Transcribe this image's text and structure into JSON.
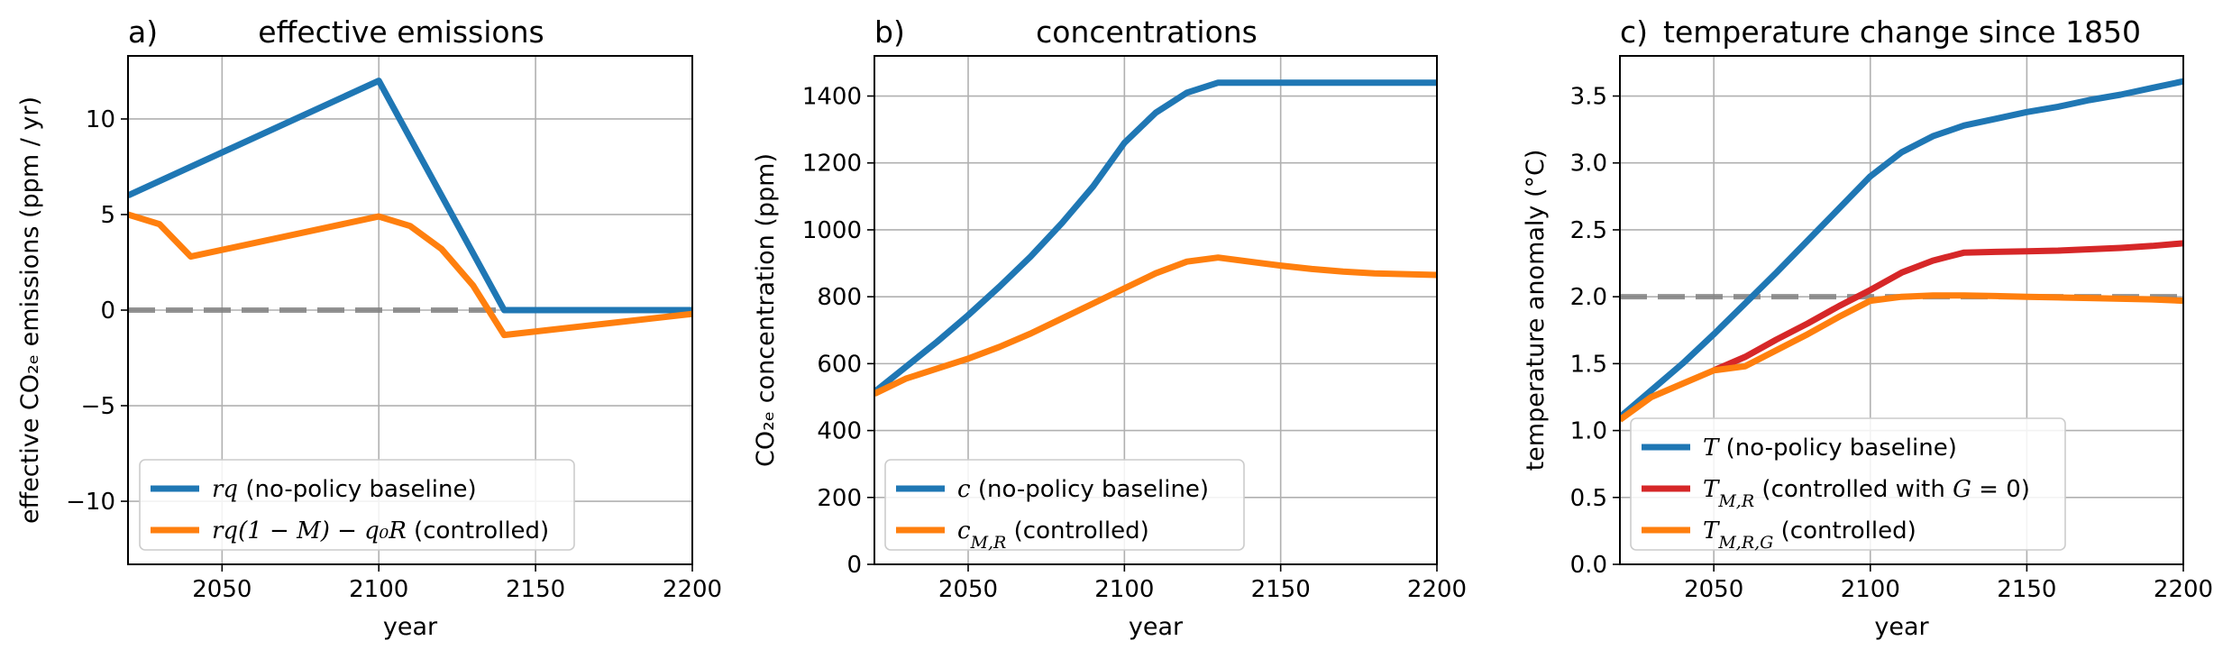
{
  "chart_data": [
    {
      "type": "line",
      "panel_label": "a)",
      "title": "effective emissions",
      "xlabel": "year",
      "ylabel": "effective CO₂ₑ emissions (ppm / yr)",
      "xlim": [
        2020,
        2200
      ],
      "ylim": [
        -13.3,
        13.3
      ],
      "xticks": [
        2050,
        2100,
        2150,
        2200
      ],
      "yticks": [
        -10,
        -5,
        0,
        5,
        10
      ],
      "grid": true,
      "legend_position": "lower-left",
      "reference_line": {
        "y": 0,
        "color": "#808080",
        "style": "dashed"
      },
      "series": [
        {
          "name": "rq (no-policy baseline)",
          "color": "#1f77b4",
          "x": [
            2020,
            2100,
            2140,
            2200
          ],
          "y": [
            6.0,
            12.0,
            0.0,
            0.0
          ]
        },
        {
          "name": "rq(1 − M) − q₀R (controlled)",
          "color": "#ff7f0e",
          "x": [
            2020,
            2030,
            2040,
            2100,
            2110,
            2120,
            2130,
            2140,
            2200
          ],
          "y": [
            5.0,
            4.5,
            2.8,
            4.9,
            4.4,
            3.2,
            1.3,
            -1.3,
            -0.2
          ]
        }
      ]
    },
    {
      "type": "line",
      "panel_label": "b)",
      "title": "concentrations",
      "xlabel": "year",
      "ylabel": "CO₂ₑ concentration (ppm)",
      "xlim": [
        2020,
        2200
      ],
      "ylim": [
        0,
        1520
      ],
      "xticks": [
        2050,
        2100,
        2150,
        2200
      ],
      "yticks": [
        0,
        200,
        400,
        600,
        800,
        1000,
        1200,
        1400
      ],
      "grid": true,
      "legend_position": "lower-left",
      "series": [
        {
          "name": "c (no-policy baseline)",
          "color": "#1f77b4",
          "x": [
            2020,
            2030,
            2040,
            2050,
            2060,
            2070,
            2080,
            2090,
            2100,
            2110,
            2120,
            2130,
            2140,
            2200
          ],
          "y": [
            515,
            590,
            665,
            745,
            830,
            920,
            1020,
            1130,
            1260,
            1350,
            1410,
            1440,
            1440,
            1440
          ]
        },
        {
          "name": "c_{M,R} (controlled)",
          "color": "#ff7f0e",
          "x": [
            2020,
            2030,
            2040,
            2050,
            2060,
            2070,
            2080,
            2090,
            2100,
            2110,
            2120,
            2130,
            2140,
            2150,
            2160,
            2170,
            2180,
            2200
          ],
          "y": [
            510,
            555,
            585,
            615,
            650,
            690,
            735,
            780,
            825,
            870,
            905,
            917,
            905,
            893,
            883,
            875,
            870,
            865
          ]
        }
      ]
    },
    {
      "type": "line",
      "panel_label": "c)",
      "title": "temperature change since 1850",
      "xlabel": "year",
      "ylabel": "temperature anomaly (°C)",
      "xlim": [
        2020,
        2200
      ],
      "ylim": [
        0,
        3.8
      ],
      "xticks": [
        2050,
        2100,
        2150,
        2200
      ],
      "yticks": [
        0.0,
        0.5,
        1.0,
        1.5,
        2.0,
        2.5,
        3.0,
        3.5
      ],
      "ytick_labels": [
        "0.0",
        "0.5",
        "1.0",
        "1.5",
        "2.0",
        "2.5",
        "3.0",
        "3.5"
      ],
      "grid": true,
      "legend_position": "lower-left",
      "reference_line": {
        "y": 2.0,
        "color": "#808080",
        "style": "dashed"
      },
      "series": [
        {
          "name": "T (no-policy baseline)",
          "color": "#1f77b4",
          "x": [
            2020,
            2030,
            2040,
            2050,
            2060,
            2070,
            2080,
            2090,
            2100,
            2110,
            2120,
            2130,
            2140,
            2150,
            2160,
            2170,
            2180,
            2190,
            2200
          ],
          "y": [
            1.1,
            1.3,
            1.5,
            1.72,
            1.95,
            2.18,
            2.42,
            2.66,
            2.9,
            3.08,
            3.2,
            3.28,
            3.33,
            3.38,
            3.42,
            3.47,
            3.51,
            3.56,
            3.61
          ]
        },
        {
          "name": "T_{M,R} (controlled with G = 0)",
          "color": "#d62728",
          "x": [
            2050,
            2060,
            2070,
            2080,
            2090,
            2100,
            2110,
            2120,
            2130,
            2140,
            2150,
            2160,
            2170,
            2180,
            2190,
            2200
          ],
          "y": [
            1.45,
            1.55,
            1.68,
            1.8,
            1.93,
            2.05,
            2.18,
            2.27,
            2.33,
            2.335,
            2.34,
            2.345,
            2.355,
            2.365,
            2.38,
            2.4
          ]
        },
        {
          "name": "T_{M,R,G} (controlled)",
          "color": "#ff7f0e",
          "x": [
            2020,
            2030,
            2040,
            2050,
            2060,
            2070,
            2080,
            2090,
            2100,
            2110,
            2120,
            2130,
            2140,
            2150,
            2160,
            2170,
            2180,
            2190,
            2200
          ],
          "y": [
            1.08,
            1.25,
            1.35,
            1.45,
            1.48,
            1.6,
            1.72,
            1.85,
            1.97,
            2.0,
            2.01,
            2.01,
            2.005,
            2.0,
            1.995,
            1.99,
            1.985,
            1.98,
            1.97
          ]
        }
      ]
    }
  ]
}
